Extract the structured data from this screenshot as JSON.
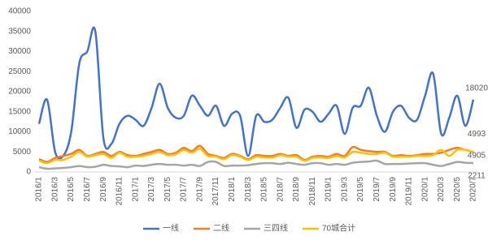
{
  "chart_data": {
    "type": "line",
    "categories": [
      "2016/1",
      null,
      "2016/3",
      null,
      "2016/5",
      null,
      "2016/7",
      null,
      "2016/9",
      null,
      "2016/11",
      null,
      "2017/1",
      null,
      "2017/3",
      null,
      "2017/5",
      null,
      "2017/7",
      null,
      "2017/9",
      null,
      "2017/11",
      null,
      "2018/1",
      null,
      "2018/3",
      null,
      "2018/5",
      null,
      "2018/7",
      null,
      "2018/9",
      null,
      "2018/11",
      null,
      "2019/1",
      null,
      "2019/3",
      null,
      "2019/5",
      null,
      "2019/7",
      null,
      "2019/9",
      null,
      "2019/11",
      null,
      "2020/1",
      null,
      "2020/3",
      null,
      "2020/5",
      null,
      "2020/7"
    ],
    "series": [
      {
        "name": "一线",
        "color": "#4472c4",
        "values": [
          12000,
          18000,
          5000,
          4000,
          10000,
          27000,
          30000,
          35000,
          8500,
          7000,
          12000,
          14000,
          13000,
          11500,
          16000,
          22000,
          16000,
          13500,
          14000,
          19000,
          16500,
          14000,
          16500,
          11500,
          14500,
          14000,
          4000,
          14000,
          12500,
          13000,
          16000,
          18500,
          11000,
          15500,
          15000,
          12500,
          14500,
          16500,
          9500,
          16000,
          16500,
          21000,
          14000,
          10000,
          15000,
          16500,
          13500,
          13000,
          19000,
          24500,
          9500,
          13500,
          19000,
          11500,
          18020
        ]
      },
      {
        "name": "二线",
        "color": "#ed7d31",
        "values": [
          3200,
          2500,
          3500,
          4000,
          4500,
          5500,
          4000,
          4500,
          5000,
          4000,
          5000,
          4200,
          4000,
          4500,
          5000,
          5500,
          4500,
          4800,
          6000,
          5200,
          6500,
          4500,
          4000,
          3500,
          4500,
          4000,
          3200,
          4200,
          4000,
          4000,
          4500,
          4000,
          4200,
          3000,
          3800,
          4000,
          3800,
          4500,
          4000,
          6200,
          5500,
          5200,
          5000,
          5000,
          4000,
          4200,
          4000,
          4200,
          4500,
          4500,
          4800,
          5500,
          6000,
          5500,
          4993
        ]
      },
      {
        "name": "三四线",
        "color": "#a5a5a5",
        "values": [
          1200,
          800,
          900,
          1000,
          1200,
          1500,
          1200,
          1300,
          1800,
          1500,
          1400,
          1200,
          1600,
          1500,
          1800,
          2000,
          1800,
          1800,
          1600,
          1800,
          1500,
          2500,
          2500,
          1500,
          1600,
          1600,
          1700,
          2000,
          2200,
          2200,
          2000,
          2300,
          2000,
          1800,
          2200,
          2200,
          1800,
          2000,
          1800,
          2300,
          2500,
          2600,
          2800,
          2000,
          2000,
          2000,
          2100,
          2200,
          2200,
          1800,
          1500,
          2000,
          2500,
          2300,
          2211
        ]
      },
      {
        "name": "70城合计",
        "color": "#ffc000",
        "values": [
          2800,
          2200,
          3000,
          3000,
          3800,
          5000,
          3800,
          4200,
          4500,
          3500,
          4800,
          3800,
          3800,
          4000,
          4500,
          5000,
          4200,
          4400,
          5500,
          4800,
          5800,
          4000,
          3800,
          3200,
          4200,
          3800,
          3000,
          3800,
          3600,
          3600,
          4200,
          3800,
          3800,
          2800,
          3500,
          3600,
          3500,
          4000,
          3600,
          5000,
          4800,
          4500,
          4500,
          4800,
          3800,
          3800,
          3800,
          4000,
          4000,
          4200,
          5500,
          4000,
          5500,
          5500,
          4905
        ]
      }
    ],
    "ylim": [
      0,
      40000
    ],
    "yticks": [
      0,
      5000,
      10000,
      15000,
      20000,
      25000,
      30000,
      35000,
      40000
    ],
    "grid": false,
    "legend": "bottom"
  }
}
